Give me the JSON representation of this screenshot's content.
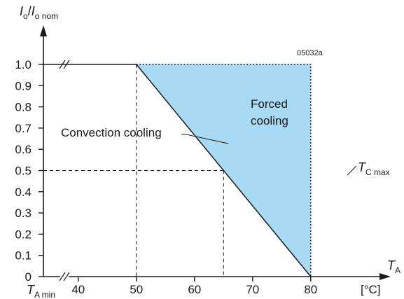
{
  "chart_data": {
    "type": "line",
    "title": "",
    "ylabel": {
      "main": "I",
      "sub1": "o",
      "slash": "/",
      "main2": "I",
      "sub2": "o nom"
    },
    "xlabel": {
      "main": "T",
      "sub": "A"
    },
    "x_unit": "[°C]",
    "x_min_label": {
      "main": "T",
      "sub": "A min"
    },
    "x_ticks": [
      40,
      50,
      60,
      70,
      80
    ],
    "y_ticks": [
      "0",
      "0.1",
      "0.2",
      "0.3",
      "0.4",
      "0.5",
      "0.6",
      "0.7",
      "0.8",
      "0.9",
      "1.0"
    ],
    "xlim": [
      34,
      80
    ],
    "ylim": [
      0,
      1.0
    ],
    "series": [
      {
        "values": [
          [
            34,
            1.0
          ],
          [
            50,
            1.0
          ],
          [
            80,
            0.0
          ]
        ]
      }
    ],
    "forced_region": [
      [
        50,
        1.0
      ],
      [
        80,
        1.0
      ],
      [
        80,
        0.0
      ]
    ],
    "forced_color": "#a8daf3",
    "guides": [
      {
        "x": 50,
        "y": 1.0
      },
      {
        "x": 65,
        "y": 0.5
      }
    ],
    "figure_id": "05032a",
    "annotations": {
      "convection": "Convection cooling",
      "forced_line1": "Forced",
      "forced_line2": "cooling",
      "tc_main": "T",
      "tc_sub": "C max"
    }
  }
}
